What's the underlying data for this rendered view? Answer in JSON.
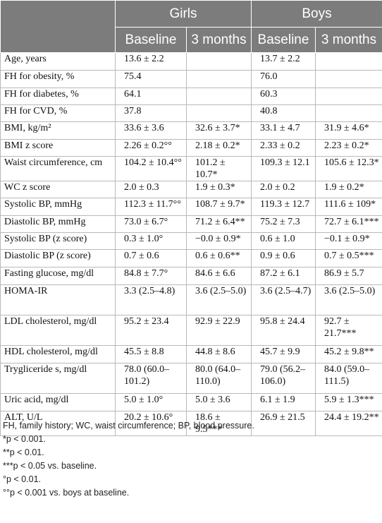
{
  "header": {
    "groups": [
      "Girls",
      "Boys"
    ],
    "subheaders": [
      "Baseline",
      "3 months",
      "Baseline",
      "3 months"
    ]
  },
  "rows": [
    {
      "label": "Age, years",
      "cells": [
        "13.6 ± 2.2",
        "",
        "13.7 ± 2.2",
        ""
      ]
    },
    {
      "label": "FH for obesity, %",
      "cells": [
        "75.4",
        "",
        "76.0",
        ""
      ]
    },
    {
      "label": "FH for diabetes, %",
      "cells": [
        "64.1",
        "",
        "60.3",
        ""
      ]
    },
    {
      "label": "FH for CVD, %",
      "cells": [
        "37.8",
        "",
        "40.8",
        ""
      ]
    },
    {
      "label": "BMI, kg/m²",
      "cells": [
        "33.6 ± 3.6",
        "32.6 ± 3.7*",
        "33.1 ± 4.7",
        "31.9 ± 4.6*"
      ]
    },
    {
      "label": "BMI z score",
      "cells": [
        "2.26 ± 0.2°°",
        "2.18 ± 0.2*",
        "2.33 ± 0.2",
        "2.23 ± 0.2*"
      ]
    },
    {
      "label": "Waist circumference, cm",
      "cells": [
        "104.2 ± 10.4°°",
        "101.2 ± 10.7*",
        "109.3 ± 12.1",
        "105.6 ± 12.3*"
      ]
    },
    {
      "label": "WC z score",
      "cells": [
        "2.0 ± 0.3",
        "1.9 ± 0.3*",
        "2.0 ± 0.2",
        "1.9 ± 0.2*"
      ]
    },
    {
      "label": "Systolic BP, mmHg",
      "cells": [
        "112.3 ± 11.7°°",
        "108.7 ± 9.7*",
        "119.3 ± 12.7",
        "111.6 ± 109*"
      ]
    },
    {
      "label": "Diastolic BP, mmHg",
      "cells": [
        "73.0 ± 6.7°",
        "71.2 ± 6.4**",
        "75.2 ± 7.3",
        "72.7 ± 6.1***"
      ]
    },
    {
      "label": "Systolic BP (z score)",
      "cells": [
        "0.3 ± 1.0°",
        "−0.0 ± 0.9*",
        "0.6 ± 1.0",
        "−0.1 ± 0.9*"
      ]
    },
    {
      "label": "Diastolic BP (z score)",
      "cells": [
        "0.7 ± 0.6",
        "0.6 ± 0.6**",
        "0.9 ± 0.6",
        "0.7 ± 0.5***"
      ]
    },
    {
      "label": "Fasting glucose, mg/dl",
      "cells": [
        "84.8 ± 7.7°",
        "84.6 ± 6.6",
        "87.2 ± 6.1",
        "86.9 ± 5.7"
      ]
    },
    {
      "label": "HOMA-IR",
      "cells": [
        "3.3 (2.5–4.8)",
        "3.6 (2.5–5.0)",
        "3.6 (2.5–4.7)",
        "3.6 (2.5–5.0)"
      ]
    },
    {
      "label": "LDL cholesterol, mg/dl",
      "cells": [
        "95.2 ± 23.4",
        "92.9 ± 22.9",
        "95.8 ± 24.4",
        "92.7 ± 21.7***"
      ]
    },
    {
      "label": "HDL cholesterol, mg/dl",
      "cells": [
        "45.5 ± 8.8",
        "44.8 ± 8.6",
        "45.7 ± 9.9",
        "45.2 ± 9.8**"
      ]
    },
    {
      "label": "Trygliceride s, mg/dl",
      "cells": [
        "78.0 (60.0–101.2)",
        "80.0 (64.0–110.0)",
        "79.0 (56.2–106.0)",
        "84.0 (59.0–111.5)"
      ]
    },
    {
      "label": "Uric acid, mg/dl",
      "cells": [
        "5.0 ± 1.0°",
        "5.0 ± 3.6",
        "6.1 ± 1.9",
        "5.9 ± 1.3***"
      ]
    },
    {
      "label": "ALT, U/L",
      "cells": [
        "20.2 ± 10.6°",
        "18.6 ± 9.5***",
        "26.9 ± 21.5",
        "24.4 ± 19.2**"
      ]
    }
  ],
  "footnotes": [
    "FH, family history; WC, waist circumference; BP, blood pressure.",
    "*p < 0.001.",
    "**p < 0.01.",
    "***p < 0.05 vs. baseline.",
    "°p < 0.01.",
    "°°p < 0.001 vs. boys at baseline."
  ]
}
